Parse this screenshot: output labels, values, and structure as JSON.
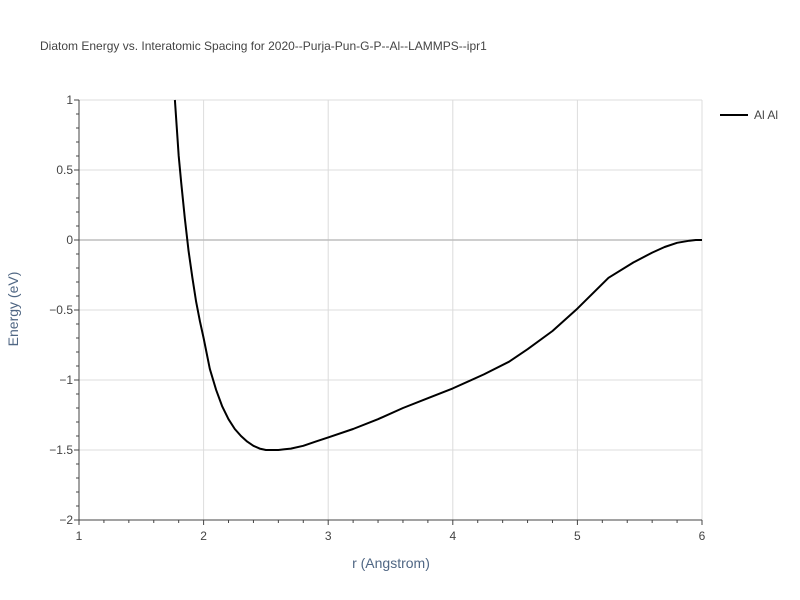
{
  "chart_data": {
    "type": "line",
    "title": "Diatom Energy vs. Interatomic Spacing for 2020--Purja-Pun-G-P--Al--LAMMPS--ipr1",
    "xlabel": "r (Angstrom)",
    "ylabel": "Energy (eV)",
    "xlim": [
      1,
      6
    ],
    "ylim": [
      -2,
      1
    ],
    "x_ticks": [
      1,
      2,
      3,
      4,
      5,
      6
    ],
    "x_tick_labels": [
      "1",
      "2",
      "3",
      "4",
      "5",
      "6"
    ],
    "y_ticks": [
      1,
      0.5,
      0,
      -0.5,
      -1,
      -1.5,
      -2
    ],
    "y_tick_labels": [
      "1",
      "0.5",
      "0",
      "−0.5",
      "−1",
      "−1.5",
      "−2"
    ],
    "grid": true,
    "legend_position": "top-right",
    "series": [
      {
        "name": "Al Al",
        "color": "#000000",
        "x": [
          1.77,
          1.8,
          1.82,
          1.85,
          1.88,
          1.91,
          1.94,
          1.97,
          2.0,
          2.05,
          2.1,
          2.15,
          2.2,
          2.25,
          2.3,
          2.35,
          2.4,
          2.45,
          2.5,
          2.55,
          2.6,
          2.65,
          2.7,
          2.8,
          2.9,
          3.0,
          3.2,
          3.4,
          3.6,
          3.8,
          4.0,
          4.25,
          4.45,
          4.6,
          4.8,
          5.0,
          5.25,
          5.45,
          5.6,
          5.7,
          5.8,
          5.9,
          5.95,
          6.0
        ],
        "y": [
          1.0,
          0.6,
          0.41,
          0.15,
          -0.08,
          -0.27,
          -0.44,
          -0.58,
          -0.7,
          -0.92,
          -1.07,
          -1.19,
          -1.28,
          -1.35,
          -1.4,
          -1.44,
          -1.47,
          -1.49,
          -1.5,
          -1.5,
          -1.5,
          -1.495,
          -1.49,
          -1.47,
          -1.44,
          -1.41,
          -1.35,
          -1.28,
          -1.2,
          -1.13,
          -1.06,
          -0.96,
          -0.87,
          -0.78,
          -0.65,
          -0.49,
          -0.27,
          -0.16,
          -0.09,
          -0.05,
          -0.02,
          -0.005,
          0.0,
          0.0
        ]
      }
    ]
  }
}
